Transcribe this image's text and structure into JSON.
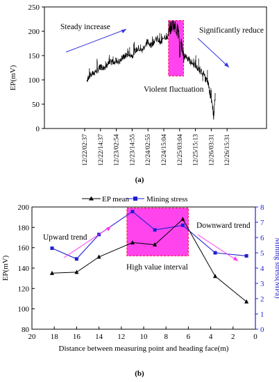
{
  "chart_data": [
    {
      "panel_label": "(a)",
      "type": "line",
      "ylabel": "EP(mV)",
      "ylim": [
        0,
        250
      ],
      "yticks": [
        0,
        50,
        100,
        150,
        200,
        250
      ],
      "x_tick_labels": [
        "12/22/02:37",
        "12/22/14:37",
        "12/23/02:54",
        "12/23/14:55",
        "12/24/02:55",
        "12/24/15:04",
        "12/25/03:04",
        "12/25/15:13",
        "12/26/03:31",
        "12/26/15:31"
      ],
      "annotations": {
        "steady": "Steady increase",
        "reduce": "Significantly reduce",
        "violent": "Violent fluctuation"
      },
      "series": [
        {
          "values": [
            [
              0.15,
              100
            ],
            [
              0.3,
              110
            ],
            [
              0.5,
              112
            ],
            [
              0.7,
              118
            ],
            [
              0.9,
              122
            ],
            [
              1.0,
              128
            ],
            [
              1.2,
              125
            ],
            [
              1.4,
              130
            ],
            [
              1.6,
              135
            ],
            [
              1.8,
              138
            ],
            [
              2.0,
              140
            ],
            [
              2.2,
              137
            ],
            [
              2.4,
              145
            ],
            [
              2.6,
              150
            ],
            [
              2.8,
              155
            ],
            [
              3.0,
              150
            ],
            [
              3.2,
              160
            ],
            [
              3.4,
              165
            ],
            [
              3.6,
              160
            ],
            [
              3.8,
              170
            ],
            [
              4.0,
              178
            ],
            [
              4.2,
              172
            ],
            [
              4.4,
              180
            ],
            [
              4.6,
              185
            ],
            [
              4.8,
              175
            ],
            [
              5.0,
              190
            ],
            [
              5.2,
              188
            ],
            [
              5.4,
              205
            ],
            [
              5.6,
              215
            ],
            [
              5.8,
              205
            ],
            [
              5.95,
              200
            ],
            [
              6.0,
              150
            ],
            [
              6.1,
              175
            ],
            [
              6.25,
              145
            ],
            [
              6.4,
              150
            ],
            [
              6.6,
              140
            ],
            [
              6.8,
              135
            ],
            [
              7.0,
              130
            ],
            [
              7.2,
              120
            ],
            [
              7.4,
              115
            ],
            [
              7.6,
              105
            ],
            [
              7.8,
              95
            ],
            [
              7.9,
              75
            ],
            [
              8.0,
              60
            ],
            [
              8.1,
              40
            ],
            [
              8.15,
              25
            ],
            [
              8.2,
              45
            ],
            [
              8.25,
              70
            ]
          ]
        }
      ]
    },
    {
      "panel_label": "(b)",
      "type": "line",
      "xlabel": "Distance between measuring point and heading face(m)",
      "ylabel": "EP(mV)",
      "ylabel_right": "Mining stress(MPa)",
      "xlim": [
        20,
        0
      ],
      "ylim": [
        80,
        200
      ],
      "ylim_right": [
        0,
        8
      ],
      "xticks": [
        20,
        18,
        16,
        14,
        12,
        10,
        8,
        6,
        4,
        2,
        0
      ],
      "yticks": [
        80,
        100,
        120,
        140,
        160,
        180,
        200
      ],
      "yticks_right": [
        0,
        1,
        2,
        3,
        4,
        5,
        6,
        7,
        8
      ],
      "legend": [
        "EP mean",
        "Mining stress"
      ],
      "legend_position": "top",
      "annotations": {
        "upward": "Upward trend",
        "downward": "Downward trend",
        "high": "High value interval"
      },
      "colors": {
        "ep": "#000000",
        "stress": "#1f1fd0",
        "highlight": "#ff44ee"
      },
      "series": [
        {
          "name": "EP mean",
          "x": [
            18.2,
            16,
            14,
            11,
            9,
            6.5,
            3.6,
            0.8
          ],
          "y": [
            135,
            136,
            151,
            165,
            163,
            188,
            132,
            107
          ]
        },
        {
          "name": "Mining stress",
          "x": [
            18.2,
            16,
            14,
            11,
            9,
            6.5,
            3.6,
            0.8
          ],
          "y": [
            5.3,
            4.6,
            6.2,
            7.7,
            6.5,
            6.8,
            5.0,
            4.8
          ]
        }
      ]
    }
  ]
}
